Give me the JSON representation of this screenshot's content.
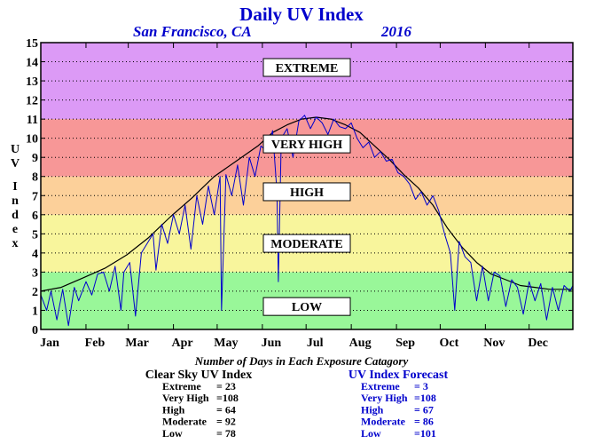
{
  "chart_data": {
    "type": "line",
    "title": "Daily UV Index",
    "location": "San Francisco, CA",
    "year": "2016",
    "ylabel": "UV Index",
    "ylim": [
      0,
      15
    ],
    "yticks": [
      "0",
      "1",
      "2",
      "3",
      "4",
      "5",
      "6",
      "7",
      "8",
      "9",
      "10",
      "11",
      "12",
      "13",
      "14",
      "15"
    ],
    "xlim": [
      1,
      366
    ],
    "months": [
      "Jan",
      "Feb",
      "Mar",
      "Apr",
      "May",
      "Jun",
      "Jul",
      "Aug",
      "Sep",
      "Oct",
      "Nov",
      "Dec"
    ],
    "month_start_days": [
      1,
      32,
      61,
      92,
      122,
      153,
      183,
      214,
      245,
      275,
      306,
      336
    ],
    "grid": true,
    "bands": [
      {
        "label": "LOW",
        "from": 0,
        "to": 3,
        "color": "#99f799",
        "label_y": 1.2
      },
      {
        "label": "MODERATE",
        "from": 3,
        "to": 6,
        "color": "#f8f59c",
        "label_y": 4.5
      },
      {
        "label": "HIGH",
        "from": 6,
        "to": 8,
        "color": "#fcd09a",
        "label_y": 7.2
      },
      {
        "label": "VERY HIGH",
        "from": 8,
        "to": 11,
        "color": "#f79797",
        "label_y": 9.7
      },
      {
        "label": "EXTREME",
        "from": 11,
        "to": 15,
        "color": "#dc9af6",
        "label_y": 13.7
      }
    ],
    "series": [
      {
        "name": "Clear Sky UV Index",
        "color": "#000000",
        "x": [
          1,
          15,
          30,
          45,
          60,
          75,
          90,
          105,
          120,
          135,
          150,
          160,
          170,
          180,
          190,
          200,
          210,
          220,
          230,
          240,
          250,
          260,
          270,
          280,
          290,
          300,
          310,
          320,
          330,
          340,
          350,
          366
        ],
        "y": [
          2.0,
          2.2,
          2.7,
          3.2,
          3.9,
          4.8,
          5.9,
          6.9,
          8.0,
          8.8,
          9.6,
          10.3,
          10.7,
          11.0,
          11.1,
          11.0,
          10.7,
          10.3,
          9.6,
          8.9,
          8.1,
          7.4,
          6.5,
          5.3,
          4.3,
          3.5,
          2.9,
          2.6,
          2.3,
          2.2,
          2.1,
          2.1
        ]
      },
      {
        "name": "UV Index Forecast",
        "color": "#0000cc",
        "x": [
          1,
          5,
          8,
          12,
          16,
          20,
          24,
          27,
          32,
          36,
          40,
          44,
          48,
          52,
          56,
          58,
          62,
          66,
          70,
          74,
          78,
          80,
          84,
          88,
          92,
          96,
          100,
          104,
          108,
          112,
          116,
          120,
          124,
          125,
          128,
          132,
          136,
          140,
          144,
          148,
          152,
          156,
          160,
          163,
          164,
          166,
          170,
          174,
          178,
          182,
          186,
          190,
          194,
          198,
          202,
          206,
          210,
          214,
          218,
          222,
          226,
          230,
          234,
          238,
          242,
          246,
          250,
          254,
          258,
          262,
          266,
          270,
          274,
          278,
          282,
          285,
          288,
          292,
          296,
          300,
          304,
          308,
          312,
          316,
          320,
          324,
          328,
          332,
          336,
          340,
          344,
          348,
          352,
          356,
          360,
          364,
          366
        ],
        "y": [
          1.8,
          1.0,
          2.0,
          0.5,
          2.1,
          0.2,
          2.2,
          1.5,
          2.5,
          1.8,
          2.9,
          3.0,
          2.0,
          3.3,
          1.0,
          3.0,
          3.5,
          0.7,
          4.0,
          4.5,
          5.0,
          3.1,
          5.5,
          4.5,
          6.0,
          5.0,
          6.5,
          4.2,
          7.0,
          5.5,
          7.5,
          6.0,
          8.0,
          1.0,
          8.1,
          7.0,
          8.6,
          6.5,
          9.0,
          8.0,
          9.6,
          9.3,
          10.4,
          7.2,
          2.5,
          10.0,
          10.5,
          9.0,
          10.9,
          11.2,
          10.5,
          11.1,
          10.8,
          10.2,
          11.0,
          10.6,
          10.5,
          10.8,
          10.0,
          9.5,
          9.8,
          9.0,
          9.3,
          8.8,
          8.9,
          8.2,
          8.0,
          7.6,
          6.8,
          7.2,
          6.5,
          7.0,
          6.2,
          5.0,
          4.0,
          1.0,
          4.6,
          3.8,
          3.5,
          1.5,
          3.3,
          1.5,
          3.0,
          2.8,
          1.2,
          2.6,
          2.2,
          0.8,
          2.5,
          1.5,
          2.4,
          0.5,
          2.2,
          1.0,
          2.3,
          2.0,
          2.3
        ]
      }
    ],
    "summary": {
      "heading": "Number of Days in Each Exposure Catagory",
      "clear_sky": {
        "title": "Clear Sky UV Index",
        "rows": [
          {
            "label": "Extreme",
            "value": "= 23"
          },
          {
            "label": "Very High",
            "value": "=108"
          },
          {
            "label": "High",
            "value": "= 64"
          },
          {
            "label": "Moderate",
            "value": "= 92"
          },
          {
            "label": "Low",
            "value": "= 78"
          }
        ]
      },
      "forecast": {
        "title": "UV Index Forecast",
        "rows": [
          {
            "label": "Extreme",
            "value": "= 3"
          },
          {
            "label": "Very High",
            "value": "=108"
          },
          {
            "label": "High",
            "value": "= 67"
          },
          {
            "label": "Moderate",
            "value": "= 86"
          },
          {
            "label": "Low",
            "value": "=101"
          }
        ]
      }
    }
  }
}
